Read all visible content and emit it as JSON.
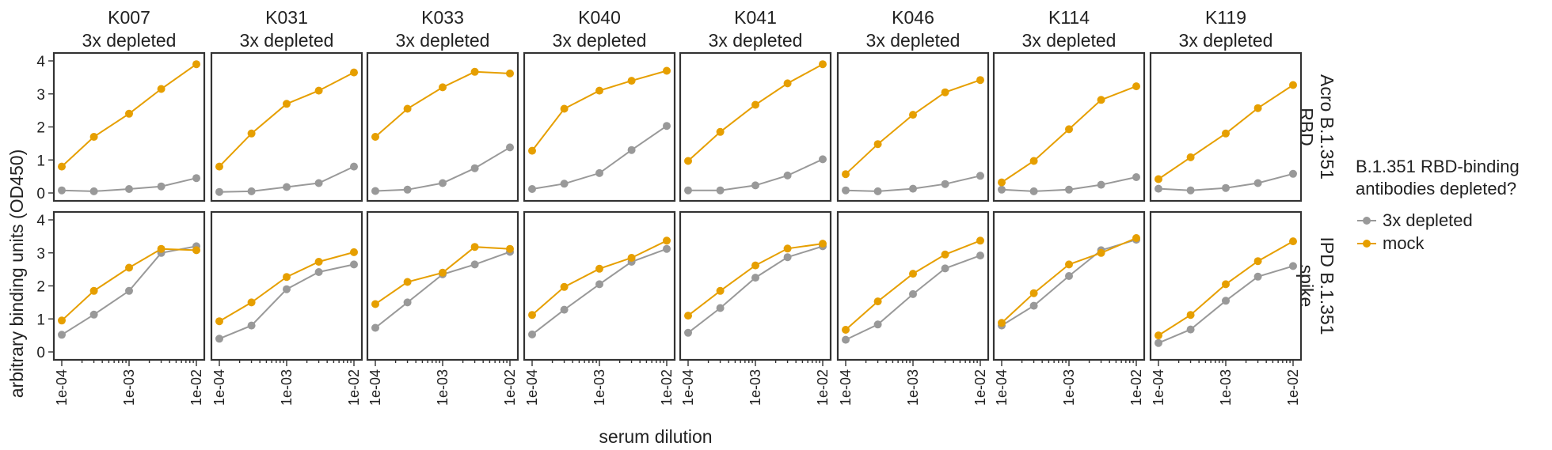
{
  "chart_data": {
    "type": "line",
    "layout": "facet grid (2 rows x 8 columns), shared axes",
    "x_scale": "log",
    "xlabel": "serum dilution",
    "ylabel": "arbitrary binding units (OD450)",
    "xlim": [
      0.0001,
      0.01
    ],
    "ylim": [
      0,
      4
    ],
    "x_tick_labels": [
      "1e-04",
      "1e-03",
      "1e-02"
    ],
    "x_ticks": [
      0.0001,
      0.001,
      0.01
    ],
    "y_ticks": [
      0,
      1,
      2,
      3,
      4
    ],
    "legend": {
      "title": "B.1.351 RBD-binding antibodies depleted?",
      "title_lines": [
        "B.1.351 RBD-binding",
        "antibodies depleted?"
      ],
      "placement": "right",
      "entries": [
        {
          "name": "3x depleted",
          "color": "#999999"
        },
        {
          "name": "mock",
          "color": "#E69F00"
        }
      ]
    },
    "columns": [
      {
        "name": "K007",
        "subtitle": "3x depleted"
      },
      {
        "name": "K031",
        "subtitle": "3x depleted"
      },
      {
        "name": "K033",
        "subtitle": "3x depleted"
      },
      {
        "name": "K040",
        "subtitle": "3x depleted"
      },
      {
        "name": "K041",
        "subtitle": "3x depleted"
      },
      {
        "name": "K046",
        "subtitle": "3x depleted"
      },
      {
        "name": "K114",
        "subtitle": "3x depleted"
      },
      {
        "name": "K119",
        "subtitle": "3x depleted"
      }
    ],
    "rows": [
      {
        "lines": [
          "Acro B.1.351",
          "RBD"
        ]
      },
      {
        "lines": [
          "IPD B.1.351",
          "spike"
        ]
      }
    ],
    "x": [
      0.0001,
      0.0003,
      0.001,
      0.003,
      0.01
    ],
    "panels": [
      [
        {
          "3x depleted": [
            0.08,
            0.05,
            0.12,
            0.2,
            0.45
          ],
          "mock": [
            0.8,
            1.7,
            2.4,
            3.15,
            3.9
          ]
        },
        {
          "3x depleted": [
            0.03,
            0.05,
            0.18,
            0.3,
            0.8
          ],
          "mock": [
            0.8,
            1.8,
            2.7,
            3.1,
            3.65
          ]
        },
        {
          "3x depleted": [
            0.06,
            0.1,
            0.3,
            0.75,
            1.38
          ],
          "mock": [
            1.7,
            2.55,
            3.2,
            3.67,
            3.62
          ]
        },
        {
          "3x depleted": [
            0.12,
            0.28,
            0.6,
            1.3,
            2.03
          ],
          "mock": [
            1.28,
            2.55,
            3.1,
            3.4,
            3.7
          ]
        },
        {
          "3x depleted": [
            0.08,
            0.08,
            0.23,
            0.53,
            1.02
          ],
          "mock": [
            0.97,
            1.85,
            2.67,
            3.32,
            3.9
          ]
        },
        {
          "3x depleted": [
            0.08,
            0.05,
            0.13,
            0.27,
            0.52
          ],
          "mock": [
            0.57,
            1.48,
            2.37,
            3.05,
            3.42
          ]
        },
        {
          "3x depleted": [
            0.1,
            0.05,
            0.1,
            0.25,
            0.48
          ],
          "mock": [
            0.32,
            0.97,
            1.93,
            2.82,
            3.23
          ]
        },
        {
          "3x depleted": [
            0.13,
            0.08,
            0.15,
            0.3,
            0.58
          ],
          "mock": [
            0.42,
            1.08,
            1.8,
            2.57,
            3.27
          ]
        }
      ],
      [
        {
          "3x depleted": [
            0.52,
            1.13,
            1.85,
            3.0,
            3.2
          ],
          "mock": [
            0.95,
            1.85,
            2.55,
            3.12,
            3.08
          ]
        },
        {
          "3x depleted": [
            0.4,
            0.8,
            1.9,
            2.42,
            2.65
          ],
          "mock": [
            0.93,
            1.5,
            2.27,
            2.73,
            3.02
          ]
        },
        {
          "3x depleted": [
            0.73,
            1.5,
            2.35,
            2.65,
            3.03
          ],
          "mock": [
            1.45,
            2.12,
            2.4,
            3.18,
            3.12
          ]
        },
        {
          "3x depleted": [
            0.53,
            1.28,
            2.05,
            2.73,
            3.12
          ],
          "mock": [
            1.12,
            1.97,
            2.52,
            2.85,
            3.37
          ]
        },
        {
          "3x depleted": [
            0.58,
            1.33,
            2.25,
            2.87,
            3.2
          ],
          "mock": [
            1.1,
            1.85,
            2.62,
            3.13,
            3.28
          ]
        },
        {
          "3x depleted": [
            0.37,
            0.83,
            1.75,
            2.53,
            2.92
          ],
          "mock": [
            0.67,
            1.53,
            2.37,
            2.95,
            3.37
          ]
        },
        {
          "3x depleted": [
            0.8,
            1.4,
            2.3,
            3.08,
            3.4
          ],
          "mock": [
            0.88,
            1.78,
            2.65,
            3.0,
            3.45
          ]
        },
        {
          "3x depleted": [
            0.27,
            0.68,
            1.55,
            2.28,
            2.6
          ],
          "mock": [
            0.5,
            1.12,
            2.05,
            2.75,
            3.35
          ]
        }
      ]
    ]
  }
}
